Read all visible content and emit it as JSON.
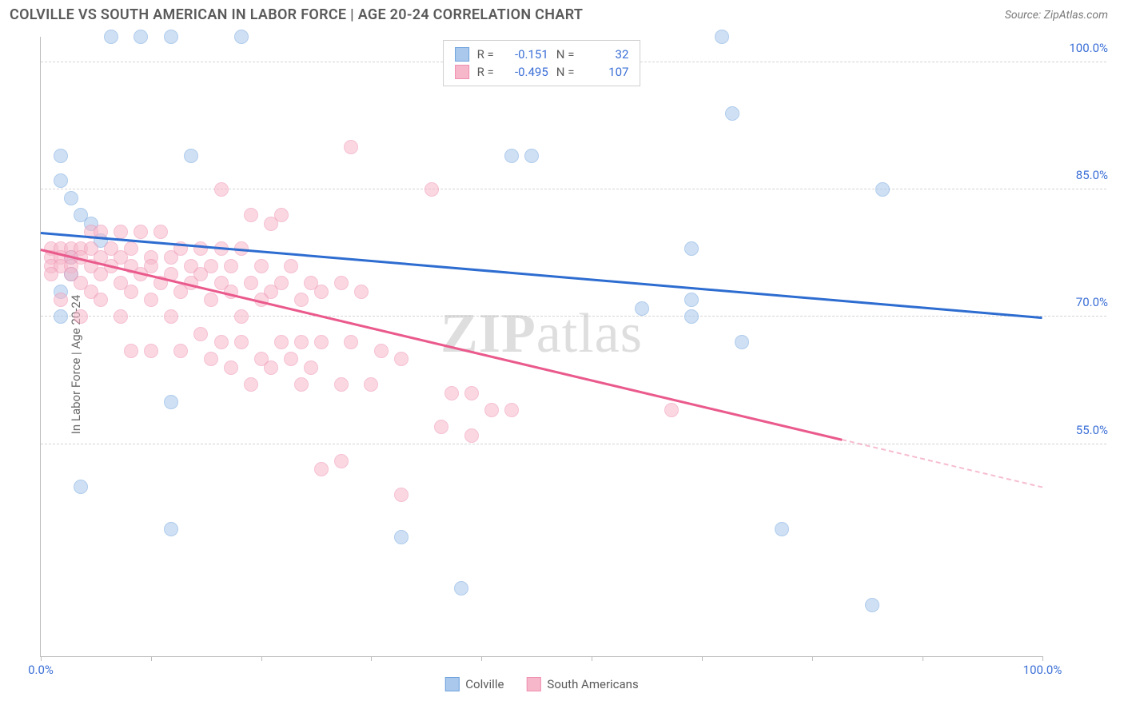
{
  "title": "COLVILLE VS SOUTH AMERICAN IN LABOR FORCE | AGE 20-24 CORRELATION CHART",
  "source": "Source: ZipAtlas.com",
  "y_axis_label": "In Labor Force | Age 20-24",
  "watermark": {
    "bold": "ZIP",
    "rest": "atlas"
  },
  "chart": {
    "type": "scatter",
    "background": "#ffffff",
    "grid_color": "#d4d4d4",
    "axis_color": "#bcbcbc",
    "label_color": "#3b6fd6",
    "label_fontsize": 15,
    "xlim": [
      0,
      100
    ],
    "ylim": [
      30,
      103
    ],
    "x_ticks": [
      0,
      11,
      22,
      33,
      44,
      55,
      66,
      77,
      88,
      100
    ],
    "x_tick_labels": {
      "0": "0.0%",
      "100": "100.0%"
    },
    "y_gridlines": [
      55,
      70,
      85,
      100
    ],
    "y_tick_labels": {
      "55": "55.0%",
      "70": "70.0%",
      "85": "85.0%",
      "100": "100.0%"
    },
    "point_radius": 9,
    "point_opacity": 0.55,
    "series": [
      {
        "name": "Colville",
        "color_fill": "#a9c8ec",
        "color_stroke": "#6fa3dd",
        "R": "-0.151",
        "N": "32",
        "trend": {
          "x1": 0,
          "y1": 80,
          "x2": 100,
          "y2": 70,
          "color": "#2d6cd0",
          "width": 2.5,
          "dashed_from_x": null
        },
        "points": [
          [
            7,
            103
          ],
          [
            10,
            103
          ],
          [
            13,
            103
          ],
          [
            20,
            103
          ],
          [
            68,
            103
          ],
          [
            69,
            94
          ],
          [
            2,
            89
          ],
          [
            15,
            89
          ],
          [
            47,
            89
          ],
          [
            49,
            89
          ],
          [
            84,
            85
          ],
          [
            3,
            84
          ],
          [
            2,
            86
          ],
          [
            4,
            82
          ],
          [
            5,
            81
          ],
          [
            3,
            77
          ],
          [
            2,
            73
          ],
          [
            65,
            78
          ],
          [
            65,
            72
          ],
          [
            65,
            70
          ],
          [
            60,
            71
          ],
          [
            70,
            67
          ],
          [
            13,
            60
          ],
          [
            4,
            50
          ],
          [
            13,
            45
          ],
          [
            36,
            44
          ],
          [
            74,
            45
          ],
          [
            42,
            38
          ],
          [
            83,
            36
          ],
          [
            2,
            70
          ],
          [
            3,
            75
          ],
          [
            6,
            79
          ]
        ]
      },
      {
        "name": "South Americans",
        "color_fill": "#f6b7ca",
        "color_stroke": "#ef8fb0",
        "R": "-0.495",
        "N": "107",
        "trend": {
          "x1": 0,
          "y1": 78,
          "x2": 100,
          "y2": 50,
          "color": "#ea5a8c",
          "width": 2.5,
          "dashed_from_x": 80
        },
        "points": [
          [
            31,
            90
          ],
          [
            39,
            85
          ],
          [
            18,
            85
          ],
          [
            24,
            82
          ],
          [
            23,
            81
          ],
          [
            21,
            82
          ],
          [
            5,
            80
          ],
          [
            6,
            80
          ],
          [
            8,
            80
          ],
          [
            10,
            80
          ],
          [
            12,
            80
          ],
          [
            1,
            78
          ],
          [
            2,
            78
          ],
          [
            3,
            78
          ],
          [
            4,
            78
          ],
          [
            5,
            78
          ],
          [
            7,
            78
          ],
          [
            9,
            78
          ],
          [
            1,
            77
          ],
          [
            2,
            77
          ],
          [
            3,
            77
          ],
          [
            4,
            77
          ],
          [
            6,
            77
          ],
          [
            8,
            77
          ],
          [
            11,
            77
          ],
          [
            13,
            77
          ],
          [
            14,
            78
          ],
          [
            16,
            78
          ],
          [
            18,
            78
          ],
          [
            20,
            78
          ],
          [
            1,
            76
          ],
          [
            2,
            76
          ],
          [
            3,
            76
          ],
          [
            5,
            76
          ],
          [
            7,
            76
          ],
          [
            9,
            76
          ],
          [
            11,
            76
          ],
          [
            15,
            76
          ],
          [
            17,
            76
          ],
          [
            19,
            76
          ],
          [
            22,
            76
          ],
          [
            25,
            76
          ],
          [
            1,
            75
          ],
          [
            3,
            75
          ],
          [
            6,
            75
          ],
          [
            10,
            75
          ],
          [
            13,
            75
          ],
          [
            16,
            75
          ],
          [
            4,
            74
          ],
          [
            8,
            74
          ],
          [
            12,
            74
          ],
          [
            15,
            74
          ],
          [
            18,
            74
          ],
          [
            21,
            74
          ],
          [
            24,
            74
          ],
          [
            27,
            74
          ],
          [
            30,
            74
          ],
          [
            5,
            73
          ],
          [
            9,
            73
          ],
          [
            14,
            73
          ],
          [
            19,
            73
          ],
          [
            23,
            73
          ],
          [
            28,
            73
          ],
          [
            32,
            73
          ],
          [
            2,
            72
          ],
          [
            6,
            72
          ],
          [
            11,
            72
          ],
          [
            17,
            72
          ],
          [
            22,
            72
          ],
          [
            26,
            72
          ],
          [
            4,
            70
          ],
          [
            8,
            70
          ],
          [
            13,
            70
          ],
          [
            20,
            70
          ],
          [
            16,
            68
          ],
          [
            18,
            67
          ],
          [
            20,
            67
          ],
          [
            24,
            67
          ],
          [
            26,
            67
          ],
          [
            28,
            67
          ],
          [
            31,
            67
          ],
          [
            9,
            66
          ],
          [
            11,
            66
          ],
          [
            14,
            66
          ],
          [
            17,
            65
          ],
          [
            22,
            65
          ],
          [
            25,
            65
          ],
          [
            19,
            64
          ],
          [
            23,
            64
          ],
          [
            27,
            64
          ],
          [
            21,
            62
          ],
          [
            26,
            62
          ],
          [
            30,
            62
          ],
          [
            33,
            62
          ],
          [
            34,
            66
          ],
          [
            36,
            65
          ],
          [
            41,
            61
          ],
          [
            43,
            61
          ],
          [
            45,
            59
          ],
          [
            47,
            59
          ],
          [
            40,
            57
          ],
          [
            43,
            56
          ],
          [
            30,
            53
          ],
          [
            28,
            52
          ],
          [
            36,
            49
          ],
          [
            63,
            59
          ]
        ]
      }
    ]
  },
  "legend_bottom": [
    {
      "label": "Colville",
      "fill": "#a9c8ec",
      "stroke": "#6fa3dd"
    },
    {
      "label": "South Americans",
      "fill": "#f6b7ca",
      "stroke": "#ef8fb0"
    }
  ]
}
